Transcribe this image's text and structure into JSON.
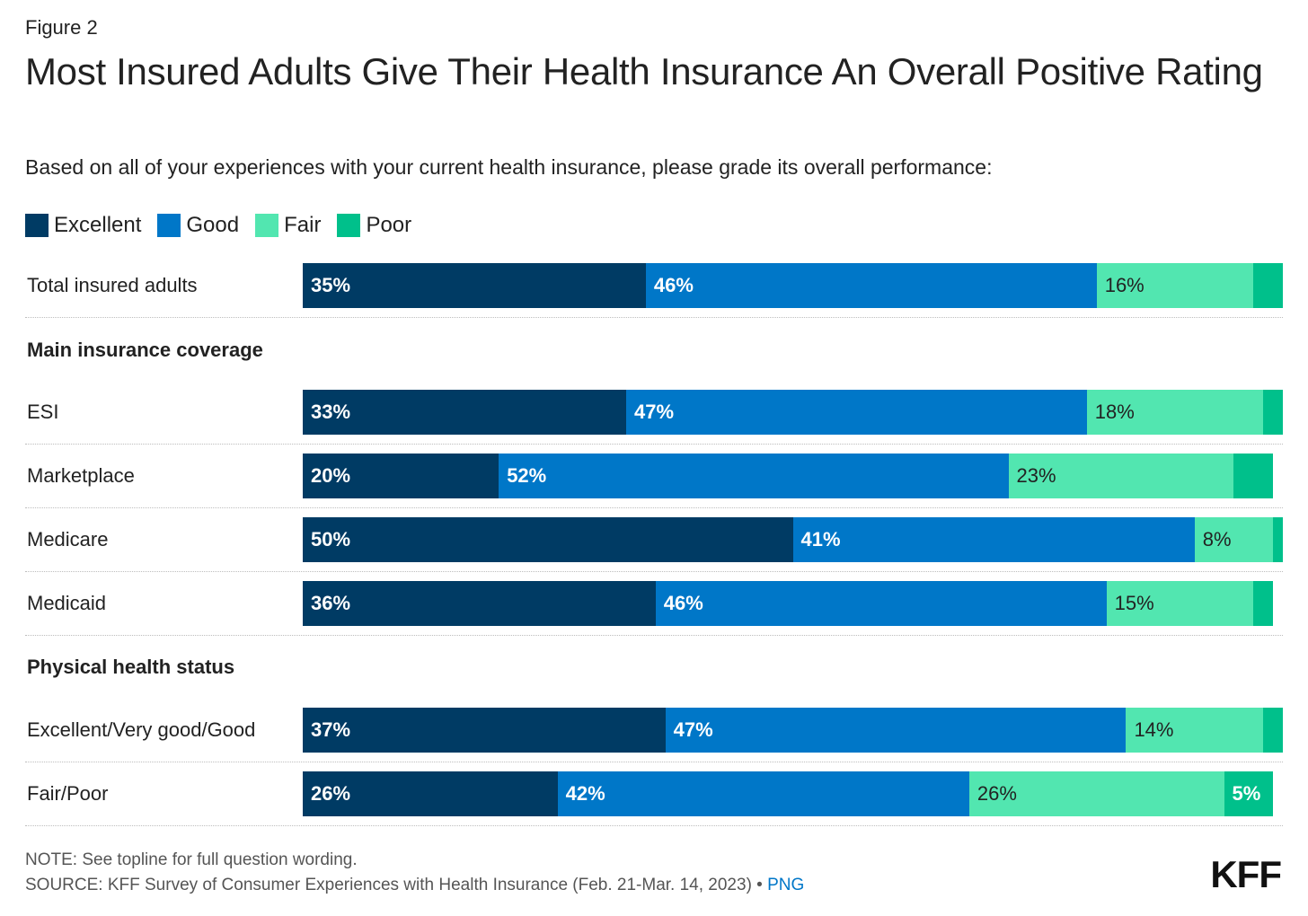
{
  "figure_label": "Figure 2",
  "title": "Most Insured Adults Give Their Health Insurance An Overall Positive Rating",
  "subtitle": "Based on all of your experiences with your current health insurance, please grade its overall performance:",
  "colors": {
    "Excellent": "#003b64",
    "Good": "#0077c8",
    "Fair": "#52e6b0",
    "Poor": "#00c08b"
  },
  "chart_data": {
    "type": "bar",
    "orientation": "horizontal",
    "stacked": true,
    "unit": "%",
    "legend": [
      "Excellent",
      "Good",
      "Fair",
      "Poor"
    ],
    "legend_position": "top-left",
    "groups": [
      {
        "label": "",
        "rows": [
          {
            "label": "Total insured adults",
            "values": [
              35,
              46,
              16,
              3
            ],
            "labels": [
              "35%",
              "46%",
              "16%",
              ""
            ]
          }
        ]
      },
      {
        "label": "Main insurance coverage",
        "rows": [
          {
            "label": "ESI",
            "values": [
              33,
              47,
              18,
              2
            ],
            "labels": [
              "33%",
              "47%",
              "18%",
              ""
            ]
          },
          {
            "label": "Marketplace",
            "values": [
              20,
              52,
              23,
              4
            ],
            "labels": [
              "20%",
              "52%",
              "23%",
              ""
            ]
          },
          {
            "label": "Medicare",
            "values": [
              50,
              41,
              8,
              1
            ],
            "labels": [
              "50%",
              "41%",
              "8%",
              ""
            ]
          },
          {
            "label": "Medicaid",
            "values": [
              36,
              46,
              15,
              2
            ],
            "labels": [
              "36%",
              "46%",
              "15%",
              ""
            ]
          }
        ]
      },
      {
        "label": "Physical health status",
        "rows": [
          {
            "label": "Excellent/Very good/Good",
            "values": [
              37,
              47,
              14,
              2
            ],
            "labels": [
              "37%",
              "47%",
              "14%",
              ""
            ]
          },
          {
            "label": "Fair/Poor",
            "values": [
              26,
              42,
              26,
              5
            ],
            "labels": [
              "26%",
              "42%",
              "26%",
              "5%"
            ]
          }
        ]
      }
    ]
  },
  "footer": {
    "note": "NOTE: See topline for full question wording.",
    "source": "SOURCE: KFF Survey of Consumer Experiences with Health Insurance (Feb. 21-Mar. 14, 2023) •",
    "png_link": "PNG",
    "logo": "KFF"
  }
}
